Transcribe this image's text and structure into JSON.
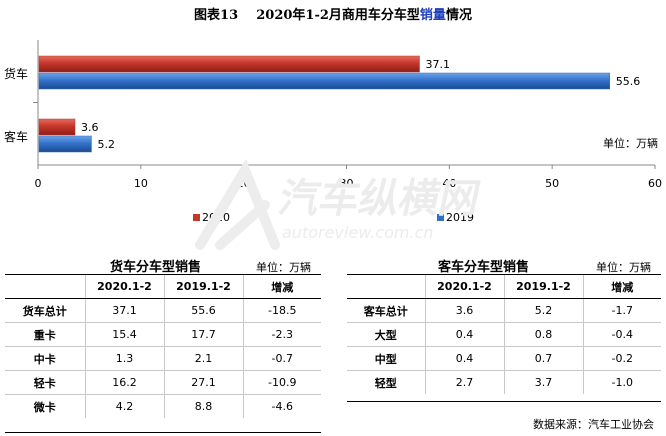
{
  "figure": {
    "title_prefix": "图表13",
    "title_mid": "2020年1-2月商用车分车型",
    "title_accent": "销量",
    "title_suffix": "情况",
    "source": "数据来源：汽车工业协会",
    "watermark_cn": "汽车纵横网",
    "watermark_en": "autoreview.com.cn"
  },
  "chart_data": {
    "type": "bar",
    "orientation": "horizontal",
    "categories": [
      "货车",
      "客车"
    ],
    "series": [
      {
        "name": "2020",
        "values": [
          37.1,
          3.6
        ],
        "color": "#c0392b"
      },
      {
        "name": "2019",
        "values": [
          55.6,
          5.2
        ],
        "color": "#2f6fc7"
      }
    ],
    "xlim": [
      0,
      60
    ],
    "xticks": [
      0,
      10,
      20,
      30,
      40,
      50,
      60
    ],
    "unit_label": "单位：万辆",
    "legend_position": "bottom",
    "grid": false
  },
  "truck_table": {
    "title": "货车分车型销售",
    "unit": "单位：万辆",
    "headers": [
      "",
      "2020.1-2",
      "2019.1-2",
      "增减"
    ],
    "rows": [
      [
        "货车总计",
        "37.1",
        "55.6",
        "-18.5"
      ],
      [
        "重卡",
        "15.4",
        "17.7",
        "-2.3"
      ],
      [
        "中卡",
        "1.3",
        "2.1",
        "-0.7"
      ],
      [
        "轻卡",
        "16.2",
        "27.1",
        "-10.9"
      ],
      [
        "微卡",
        "4.2",
        "8.8",
        "-4.6"
      ]
    ]
  },
  "bus_table": {
    "title": "客车分车型销售",
    "unit": "单位：万辆",
    "headers": [
      "",
      "2020.1-2",
      "2019.1-2",
      "增减"
    ],
    "rows": [
      [
        "客车总计",
        "3.6",
        "5.2",
        "-1.7"
      ],
      [
        "大型",
        "0.4",
        "0.8",
        "-0.4"
      ],
      [
        "中型",
        "0.4",
        "0.7",
        "-0.2"
      ],
      [
        "轻型",
        "2.7",
        "3.7",
        "-1.0"
      ]
    ]
  }
}
